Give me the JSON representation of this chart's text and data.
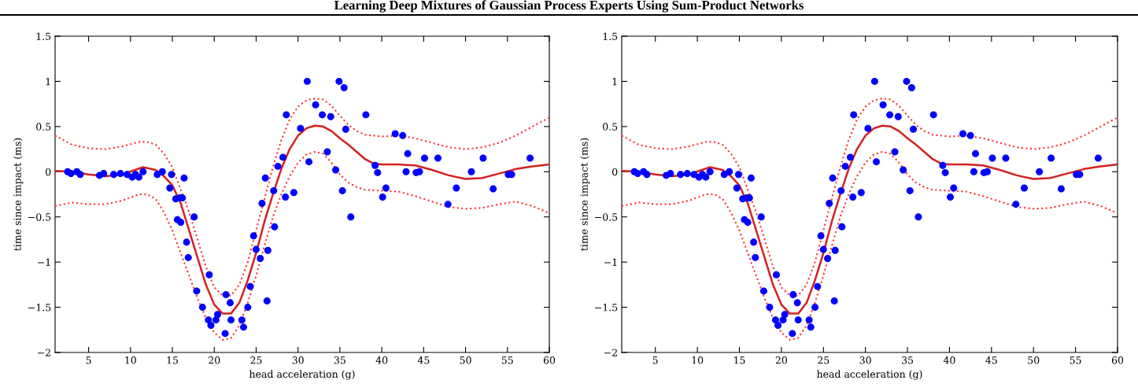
{
  "chart_data": [
    {
      "type": "scatter",
      "annotations": [
        "Learning Deep Mixtures of Gaussian Process Experts Using Sum-Product Networks"
      ],
      "xlabel": "head acceleration (g)",
      "ylabel": "time since impact (ms)",
      "xlim": [
        1,
        60
      ],
      "xticks": [
        5,
        10,
        15,
        20,
        25,
        30,
        35,
        40,
        45,
        50,
        55,
        60
      ],
      "ylim": [
        -2,
        1.5
      ],
      "yticks": [
        {
          "value": -2,
          "label": "−2"
        },
        {
          "value": -1.5,
          "label": "−1.5"
        },
        {
          "value": -1,
          "label": "−1"
        },
        {
          "value": -0.5,
          "label": "−0.5"
        },
        0,
        0.5,
        1,
        1.5
      ],
      "grid": false,
      "legend": false,
      "series": [
        {
          "type": "scatter",
          "color": "#0000ff",
          "marker": "circle",
          "x": [
            2.5,
            2.9,
            3.6,
            4.0,
            6.3,
            6.8,
            8.0,
            8.8,
            9.6,
            10.2,
            10.6,
            11.0,
            11.5,
            13.2,
            13.8,
            14.9,
            14.7,
            16.4,
            15.4,
            15.9,
            16.2,
            15.6,
            16.0,
            16.7,
            16.9,
            17.6,
            17.9,
            19.4,
            18.6,
            19.3,
            19.6,
            20.2,
            20.4,
            21.3,
            21.4,
            21.9,
            22.0,
            23.3,
            23.5,
            24.0,
            24.3,
            24.7,
            25.0,
            25.5,
            25.7,
            26.1,
            26.4,
            26.3,
            27.1,
            27.2,
            27.6,
            28.2,
            28.5,
            28.6,
            29.5,
            30.3,
            31.1,
            31.3,
            32.1,
            32.9,
            33.5,
            33.9,
            34.5,
            34.9,
            35.5,
            35.7,
            35.3,
            36.3,
            38.1,
            39.2,
            39.5,
            40.1,
            40.5,
            41.6,
            42.5,
            42.9,
            43.1,
            44.1,
            44.5,
            45.1,
            46.7,
            47.9,
            48.9,
            50.7,
            52.1,
            53.3,
            55.1,
            55.5,
            57.7
          ],
          "values": [
            0,
            -0.02,
            0,
            -0.03,
            -0.04,
            -0.02,
            -0.03,
            -0.02,
            -0.03,
            -0.06,
            -0.03,
            -0.06,
            0,
            -0.03,
            0,
            -0.03,
            -0.18,
            -0.07,
            -0.3,
            -0.29,
            -0.29,
            -0.53,
            -0.56,
            -0.78,
            -0.95,
            -0.5,
            -1.32,
            -1.14,
            -1.5,
            -1.64,
            -1.7,
            -1.64,
            -1.58,
            -1.79,
            -1.36,
            -1.45,
            -1.64,
            -1.64,
            -1.72,
            -1.5,
            -1.27,
            -0.71,
            -0.86,
            -0.96,
            -0.35,
            -0.07,
            -0.87,
            -1.43,
            -0.21,
            -0.61,
            0.06,
            0.16,
            -0.28,
            0.63,
            -0.23,
            0.48,
            1.0,
            0.11,
            0.74,
            0.63,
            0.22,
            0.61,
            0.02,
            1.0,
            0.93,
            0.47,
            -0.21,
            -0.5,
            0.63,
            0.07,
            -0.01,
            -0.28,
            -0.18,
            0.42,
            0.4,
            0,
            0.2,
            -0.01,
            0,
            0.15,
            0.15,
            -0.36,
            -0.18,
            0,
            0.15,
            -0.19,
            -0.03,
            -0.03,
            0.15
          ]
        },
        {
          "type": "line",
          "color": "#d42020",
          "line_style": "solid",
          "x": [
            1,
            3,
            5,
            7,
            9,
            11.5,
            13,
            14,
            15,
            16,
            17,
            18,
            19,
            20,
            21,
            22,
            23,
            24,
            25,
            26,
            27,
            28,
            29,
            30,
            31,
            32,
            33,
            34,
            35,
            36,
            37,
            38,
            39,
            40,
            42,
            44,
            46,
            48,
            50,
            52,
            54,
            56,
            58,
            60
          ],
          "values": [
            0.01,
            0.0,
            -0.03,
            -0.05,
            -0.03,
            0.05,
            0.02,
            -0.05,
            -0.15,
            -0.35,
            -0.65,
            -0.95,
            -1.25,
            -1.47,
            -1.57,
            -1.57,
            -1.45,
            -1.2,
            -0.9,
            -0.55,
            -0.25,
            0.03,
            0.25,
            0.4,
            0.48,
            0.51,
            0.5,
            0.45,
            0.37,
            0.3,
            0.22,
            0.14,
            0.09,
            0.08,
            0.08,
            0.07,
            0.02,
            -0.04,
            -0.08,
            -0.07,
            -0.02,
            0.03,
            0.06,
            0.08
          ]
        },
        {
          "type": "line",
          "color": "#ff3030",
          "line_style": "dotted",
          "x": [
            1,
            3,
            5,
            7,
            9,
            11,
            12,
            13,
            14,
            15,
            16,
            17,
            18,
            19,
            20,
            21,
            22,
            23,
            24,
            25,
            26,
            27,
            28,
            29,
            30,
            31,
            32,
            33,
            34,
            35,
            36,
            37,
            38,
            40,
            42,
            44,
            46,
            48,
            50,
            52,
            54,
            56,
            58,
            60
          ],
          "values": [
            0.4,
            0.3,
            0.26,
            0.25,
            0.28,
            0.33,
            0.33,
            0.3,
            0.2,
            0.05,
            -0.2,
            -0.45,
            -0.75,
            -1.05,
            -1.28,
            -1.37,
            -1.37,
            -1.25,
            -1.0,
            -0.65,
            -0.3,
            0.05,
            0.35,
            0.58,
            0.72,
            0.79,
            0.81,
            0.8,
            0.73,
            0.62,
            0.52,
            0.45,
            0.41,
            0.39,
            0.4,
            0.37,
            0.32,
            0.27,
            0.25,
            0.27,
            0.32,
            0.4,
            0.5,
            0.6
          ]
        },
        {
          "type": "line",
          "color": "#ff3030",
          "line_style": "dotted",
          "x": [
            1,
            3,
            5,
            7,
            9,
            11,
            12,
            13,
            14,
            15,
            16,
            17,
            18,
            19,
            20,
            21,
            22,
            23,
            24,
            25,
            26,
            27,
            28,
            29,
            30,
            31,
            32,
            33,
            34,
            35,
            36,
            37,
            38,
            40,
            42,
            44,
            46,
            48,
            50,
            52,
            54,
            56,
            58,
            60
          ],
          "values": [
            -0.38,
            -0.34,
            -0.36,
            -0.36,
            -0.32,
            -0.25,
            -0.25,
            -0.3,
            -0.45,
            -0.65,
            -0.9,
            -1.15,
            -1.4,
            -1.62,
            -1.78,
            -1.86,
            -1.84,
            -1.7,
            -1.45,
            -1.15,
            -0.82,
            -0.5,
            -0.25,
            -0.05,
            0.1,
            0.19,
            0.22,
            0.2,
            0.1,
            -0.03,
            -0.12,
            -0.17,
            -0.2,
            -0.21,
            -0.22,
            -0.27,
            -0.33,
            -0.39,
            -0.41,
            -0.4,
            -0.36,
            -0.33,
            -0.38,
            -0.46
          ]
        }
      ]
    },
    {
      "type": "scatter",
      "xlabel": "head acceleration (g)",
      "ylabel": "time since impact (ms)",
      "xlim": [
        1,
        60
      ],
      "xticks": [
        5,
        10,
        15,
        20,
        25,
        30,
        35,
        40,
        45,
        50,
        55,
        60
      ],
      "ylim": [
        -2,
        1.5
      ],
      "yticks": [
        {
          "value": -2,
          "label": "−2"
        },
        {
          "value": -1.5,
          "label": "−1.5"
        },
        {
          "value": -1,
          "label": "−1"
        },
        {
          "value": -0.5,
          "label": "−0.5"
        },
        0,
        0.5,
        1,
        1.5
      ],
      "grid": false,
      "legend": false,
      "series": [
        {
          "type": "scatter",
          "color": "#0000ff",
          "marker": "circle",
          "x": [
            2.5,
            2.9,
            3.6,
            4.0,
            6.3,
            6.8,
            8.0,
            8.8,
            9.6,
            10.2,
            10.6,
            11.0,
            11.5,
            13.2,
            13.8,
            14.9,
            14.7,
            16.4,
            15.4,
            15.9,
            16.2,
            15.6,
            16.0,
            16.7,
            16.9,
            17.6,
            17.9,
            19.4,
            18.6,
            19.3,
            19.6,
            20.2,
            20.4,
            21.3,
            21.4,
            21.9,
            22.0,
            23.3,
            23.5,
            24.0,
            24.3,
            24.7,
            25.0,
            25.5,
            25.7,
            26.1,
            26.4,
            26.3,
            27.1,
            27.2,
            27.6,
            28.2,
            28.5,
            28.6,
            29.5,
            30.3,
            31.1,
            31.3,
            32.1,
            32.9,
            33.5,
            33.9,
            34.5,
            34.9,
            35.5,
            35.7,
            35.3,
            36.3,
            38.1,
            39.2,
            39.5,
            40.1,
            40.5,
            41.6,
            42.5,
            42.9,
            43.1,
            44.1,
            44.5,
            45.1,
            46.7,
            47.9,
            48.9,
            50.7,
            52.1,
            53.3,
            55.1,
            55.5,
            57.7
          ],
          "values": [
            0,
            -0.02,
            0,
            -0.03,
            -0.04,
            -0.02,
            -0.03,
            -0.02,
            -0.03,
            -0.06,
            -0.03,
            -0.06,
            0,
            -0.03,
            0,
            -0.03,
            -0.18,
            -0.07,
            -0.3,
            -0.29,
            -0.29,
            -0.53,
            -0.56,
            -0.78,
            -0.95,
            -0.5,
            -1.32,
            -1.14,
            -1.5,
            -1.64,
            -1.7,
            -1.64,
            -1.58,
            -1.79,
            -1.36,
            -1.45,
            -1.64,
            -1.64,
            -1.72,
            -1.5,
            -1.27,
            -0.71,
            -0.86,
            -0.96,
            -0.35,
            -0.07,
            -0.87,
            -1.43,
            -0.21,
            -0.61,
            0.06,
            0.16,
            -0.28,
            0.63,
            -0.23,
            0.48,
            1.0,
            0.11,
            0.74,
            0.63,
            0.22,
            0.61,
            0.02,
            1.0,
            0.93,
            0.47,
            -0.21,
            -0.5,
            0.63,
            0.07,
            -0.01,
            -0.28,
            -0.18,
            0.42,
            0.4,
            0,
            0.2,
            -0.01,
            0,
            0.15,
            0.15,
            -0.36,
            -0.18,
            0,
            0.15,
            -0.19,
            -0.03,
            -0.03,
            0.15
          ]
        },
        {
          "type": "line",
          "color": "#d42020",
          "line_style": "solid",
          "x": [
            1,
            3,
            5,
            7,
            9,
            11.5,
            13,
            14,
            15,
            16,
            17,
            18,
            19,
            20,
            21,
            22,
            23,
            24,
            25,
            26,
            27,
            28,
            29,
            30,
            31,
            32,
            33,
            34,
            35,
            36,
            37,
            38,
            39,
            40,
            42,
            44,
            46,
            48,
            50,
            52,
            54,
            56,
            58,
            60
          ],
          "values": [
            0.01,
            0.0,
            -0.03,
            -0.05,
            -0.03,
            0.05,
            0.02,
            -0.05,
            -0.15,
            -0.35,
            -0.65,
            -0.95,
            -1.25,
            -1.47,
            -1.57,
            -1.57,
            -1.45,
            -1.2,
            -0.9,
            -0.55,
            -0.25,
            0.03,
            0.25,
            0.4,
            0.48,
            0.51,
            0.5,
            0.45,
            0.37,
            0.3,
            0.22,
            0.14,
            0.09,
            0.08,
            0.08,
            0.07,
            0.02,
            -0.04,
            -0.08,
            -0.07,
            -0.02,
            0.03,
            0.06,
            0.08
          ]
        },
        {
          "type": "line",
          "color": "#ff3030",
          "line_style": "dotted",
          "x": [
            1,
            3,
            5,
            7,
            9,
            11,
            12,
            13,
            14,
            15,
            16,
            17,
            18,
            19,
            20,
            21,
            22,
            23,
            24,
            25,
            26,
            27,
            28,
            29,
            30,
            31,
            32,
            33,
            34,
            35,
            36,
            37,
            38,
            40,
            42,
            44,
            46,
            48,
            50,
            52,
            54,
            56,
            58,
            60
          ],
          "values": [
            0.4,
            0.3,
            0.26,
            0.25,
            0.28,
            0.33,
            0.33,
            0.3,
            0.2,
            0.05,
            -0.2,
            -0.45,
            -0.75,
            -1.05,
            -1.28,
            -1.37,
            -1.37,
            -1.25,
            -1.0,
            -0.65,
            -0.3,
            0.05,
            0.35,
            0.58,
            0.72,
            0.79,
            0.81,
            0.8,
            0.73,
            0.62,
            0.52,
            0.45,
            0.41,
            0.39,
            0.4,
            0.37,
            0.32,
            0.27,
            0.25,
            0.27,
            0.32,
            0.4,
            0.5,
            0.6
          ]
        },
        {
          "type": "line",
          "color": "#ff3030",
          "line_style": "dotted",
          "x": [
            1,
            3,
            5,
            7,
            9,
            11,
            12,
            13,
            14,
            15,
            16,
            17,
            18,
            19,
            20,
            21,
            22,
            23,
            24,
            25,
            26,
            27,
            28,
            29,
            30,
            31,
            32,
            33,
            34,
            35,
            36,
            37,
            38,
            40,
            42,
            44,
            46,
            48,
            50,
            52,
            54,
            56,
            58,
            60
          ],
          "values": [
            -0.38,
            -0.34,
            -0.36,
            -0.36,
            -0.32,
            -0.25,
            -0.25,
            -0.3,
            -0.45,
            -0.65,
            -0.9,
            -1.15,
            -1.4,
            -1.62,
            -1.78,
            -1.86,
            -1.84,
            -1.7,
            -1.45,
            -1.15,
            -0.82,
            -0.5,
            -0.25,
            -0.05,
            0.1,
            0.19,
            0.22,
            0.2,
            0.1,
            -0.03,
            -0.12,
            -0.17,
            -0.2,
            -0.21,
            -0.22,
            -0.27,
            -0.33,
            -0.39,
            -0.41,
            -0.4,
            -0.36,
            -0.33,
            -0.38,
            -0.46
          ]
        }
      ]
    }
  ]
}
